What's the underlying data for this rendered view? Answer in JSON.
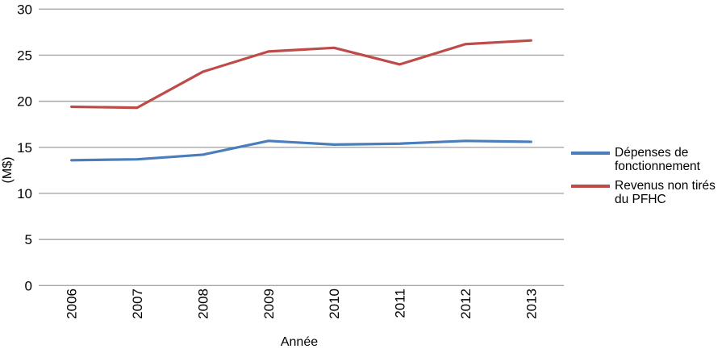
{
  "chart_data": {
    "type": "line",
    "title": "",
    "xlabel": "Année",
    "ylabel": "(M$)",
    "categories": [
      "2006",
      "2007",
      "2008",
      "2009",
      "2010",
      "2011",
      "2012",
      "2013"
    ],
    "series": [
      {
        "name": "Dépenses de fonctionnement",
        "color": "#4a7ebb",
        "values": [
          13.6,
          13.7,
          14.2,
          15.7,
          15.3,
          15.4,
          15.7,
          15.6
        ]
      },
      {
        "name": "Revenus non tirés du PFHC",
        "color": "#be4b48",
        "values": [
          19.4,
          19.3,
          23.2,
          25.4,
          25.8,
          24.0,
          26.2,
          26.6
        ]
      }
    ],
    "ylim": [
      0,
      30
    ],
    "yticks": [
      "0",
      "5",
      "10",
      "15",
      "20",
      "25",
      "30"
    ],
    "grid": true,
    "gridline_color": "#a6a6a6",
    "axis_text_color": "#000000",
    "background_color": "#ffffff",
    "legend_position": "right"
  }
}
